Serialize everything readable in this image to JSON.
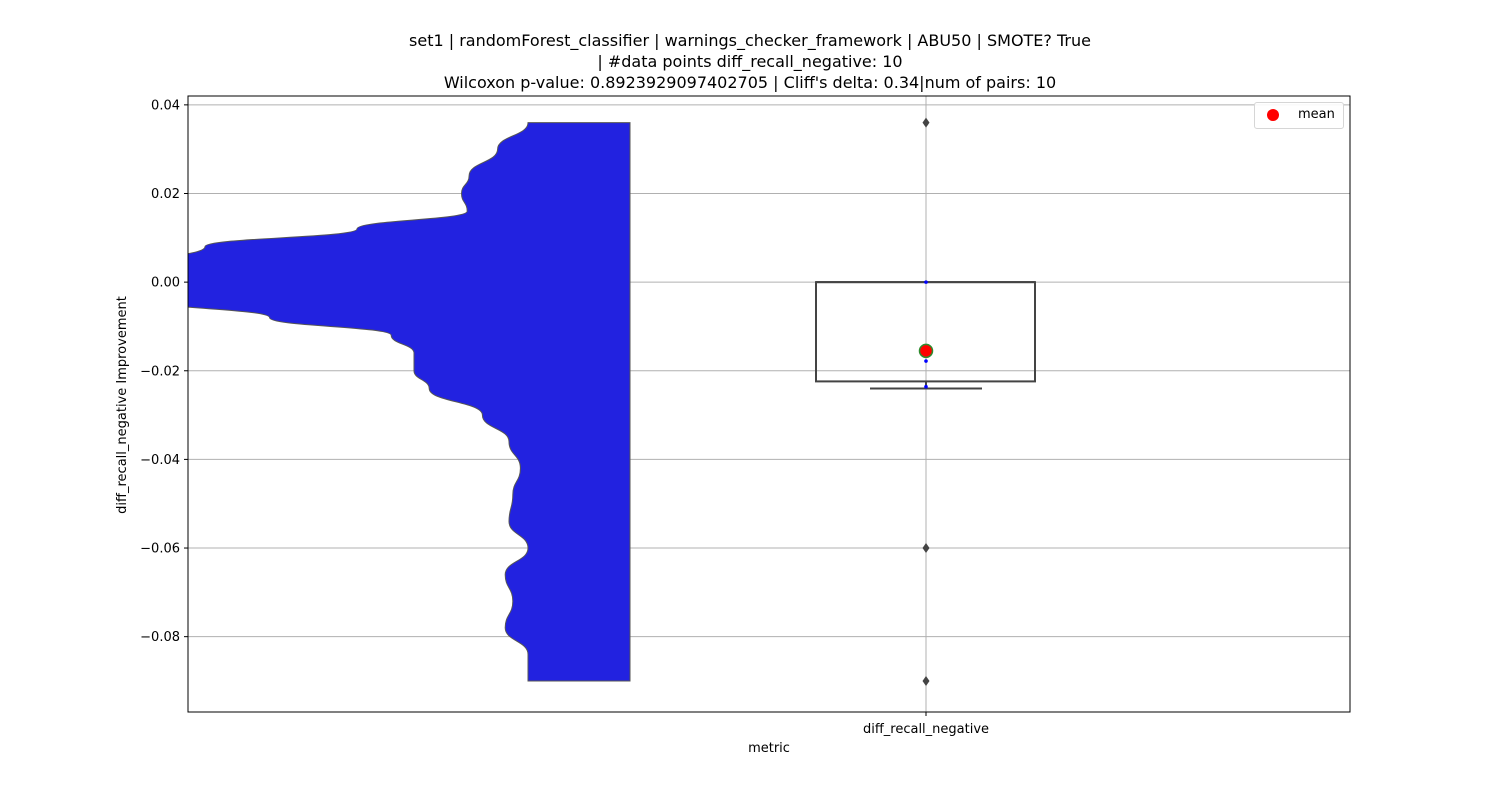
{
  "chart_data": {
    "type": "violin+box",
    "title_lines": [
      "set1 | randomForest_classifier | warnings_checker_framework | ABU50 | SMOTE? True",
      "| #data points diff_recall_negative: 10",
      "Wilcoxon p-value: 0.8923929097402705 | Cliff's delta: 0.34|num of pairs: 10"
    ],
    "xlabel": "metric",
    "ylabel": "diff_recall_negative Improvement",
    "categories": [
      "diff_recall_negative"
    ],
    "ylim": [
      -0.097,
      0.042
    ],
    "yticks": [
      0.04,
      0.02,
      0.0,
      -0.02,
      -0.04,
      -0.06,
      -0.08
    ],
    "ytick_labels": [
      "0.04",
      "0.02",
      "0.00",
      "−0.02",
      "−0.04",
      "−0.06",
      "−0.08"
    ],
    "grid": true,
    "legend": {
      "placement": "top-right",
      "entries": [
        "mean"
      ]
    },
    "colors": {
      "violin_fill": "#2222e0",
      "violin_edge": "#555555",
      "box_edge": "#444444",
      "mean": "#ff0000",
      "mean_edge": "#2e8b2e",
      "grid": "#b0b0b0",
      "flier": "#444444",
      "points": "#0000ff"
    },
    "violin": {
      "half": "left",
      "ymin": -0.09,
      "ymax": 0.036,
      "profile": [
        [
          0.036,
          0.0
        ],
        [
          0.03,
          0.08
        ],
        [
          0.024,
          0.155
        ],
        [
          0.02,
          0.175
        ],
        [
          0.016,
          0.16
        ],
        [
          0.012,
          0.45
        ],
        [
          0.008,
          0.85
        ],
        [
          0.004,
          1.0
        ],
        [
          0.0,
          1.0
        ],
        [
          -0.004,
          1.0
        ],
        [
          -0.008,
          0.68
        ],
        [
          -0.012,
          0.36
        ],
        [
          -0.016,
          0.3
        ],
        [
          -0.02,
          0.3
        ],
        [
          -0.024,
          0.26
        ],
        [
          -0.03,
          0.12
        ],
        [
          -0.036,
          0.05
        ],
        [
          -0.042,
          0.02
        ],
        [
          -0.048,
          0.04
        ],
        [
          -0.054,
          0.05
        ],
        [
          -0.06,
          0.0
        ],
        [
          -0.066,
          0.06
        ],
        [
          -0.072,
          0.04
        ],
        [
          -0.078,
          0.06
        ],
        [
          -0.084,
          0.0
        ],
        [
          -0.09,
          0.0
        ]
      ]
    },
    "box": {
      "q1": -0.0224,
      "median": 0.0,
      "q3": 0.0,
      "whisker_low": -0.024,
      "whisker_high": 0.0
    },
    "mean": -0.0155,
    "points": [
      0.0,
      -0.0178,
      -0.0236
    ],
    "fliers": [
      0.036,
      -0.06,
      -0.09
    ]
  }
}
